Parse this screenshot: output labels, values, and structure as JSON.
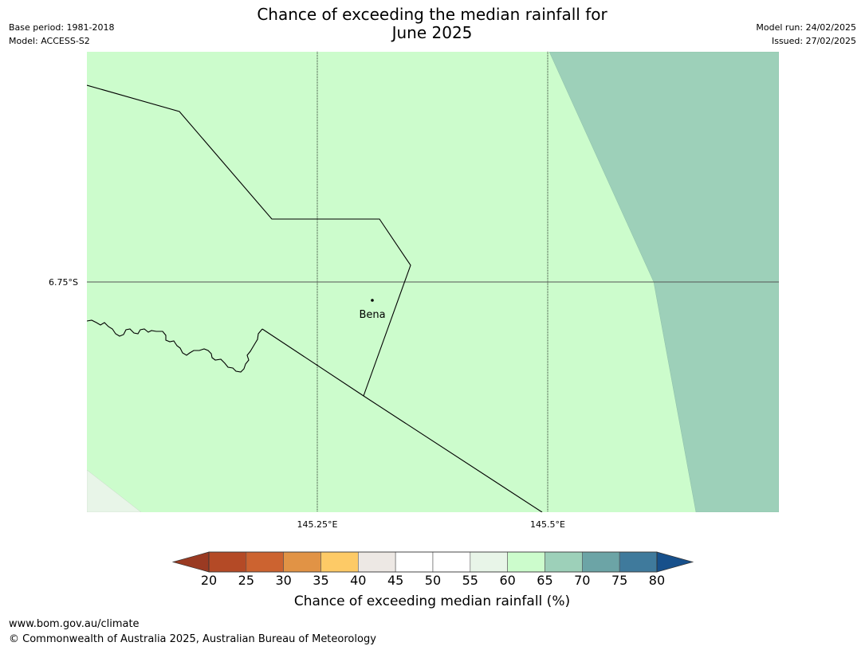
{
  "title": {
    "line1": "Chance of exceeding the median rainfall for",
    "line2": "June 2025"
  },
  "meta_left": {
    "base_period": "Base period: 1981-2018",
    "model": "Model: ACCESS-S2"
  },
  "meta_right": {
    "model_run": "Model run: 24/02/2025",
    "issued": "Issued: 27/02/2025"
  },
  "map": {
    "lat_label": "6.75°S",
    "lon_labels": [
      "145.25°E",
      "145.5°E"
    ],
    "place": "Bena",
    "fill_colors": {
      "main": "#ccfccc",
      "high": "#9dd0b9",
      "low": "#e8f5e8"
    }
  },
  "colorbar": {
    "title": "Chance of exceeding median rainfall (%)",
    "labels": [
      "20",
      "25",
      "30",
      "35",
      "40",
      "45",
      "50",
      "55",
      "60",
      "65",
      "70",
      "75",
      "80"
    ],
    "colors": [
      "#9a3a22",
      "#b44a26",
      "#cc6330",
      "#e19345",
      "#fdca66",
      "#ede8e4",
      "#ffffff",
      "#ffffff",
      "#e8f5e8",
      "#ccfccc",
      "#9dd0b9",
      "#6ca4a6",
      "#3f7a9c",
      "#17508b"
    ]
  },
  "footer": {
    "url": "www.bom.gov.au/climate",
    "copyright": "© Commonwealth of Australia 2025, Australian Bureau of Meteorology"
  }
}
